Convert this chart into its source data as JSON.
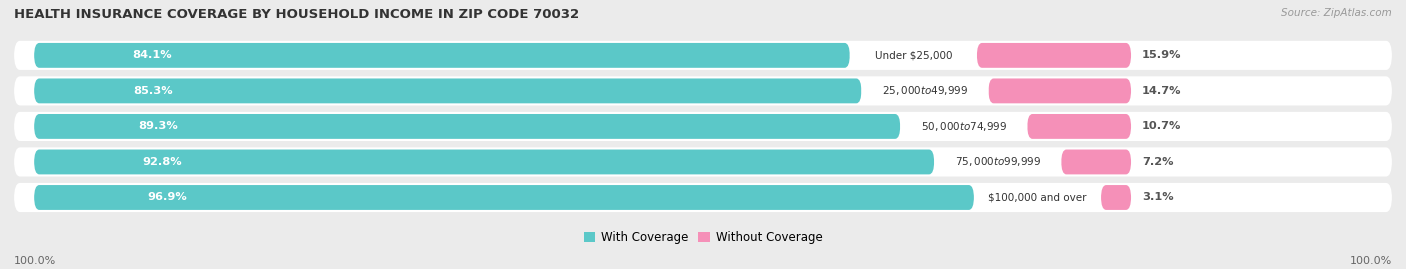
{
  "title": "HEALTH INSURANCE COVERAGE BY HOUSEHOLD INCOME IN ZIP CODE 70032",
  "source": "Source: ZipAtlas.com",
  "categories": [
    "Under $25,000",
    "$25,000 to $49,999",
    "$50,000 to $74,999",
    "$75,000 to $99,999",
    "$100,000 and over"
  ],
  "with_coverage": [
    84.1,
    85.3,
    89.3,
    92.8,
    96.9
  ],
  "without_coverage": [
    15.9,
    14.7,
    10.7,
    7.2,
    3.1
  ],
  "color_with": "#5bc8c8",
  "color_without": "#f590b8",
  "bg_color": "#ebebeb",
  "bar_bg_color": "#ffffff",
  "legend_labels": [
    "With Coverage",
    "Without Coverage"
  ],
  "left_label": "100.0%",
  "right_label": "100.0%"
}
